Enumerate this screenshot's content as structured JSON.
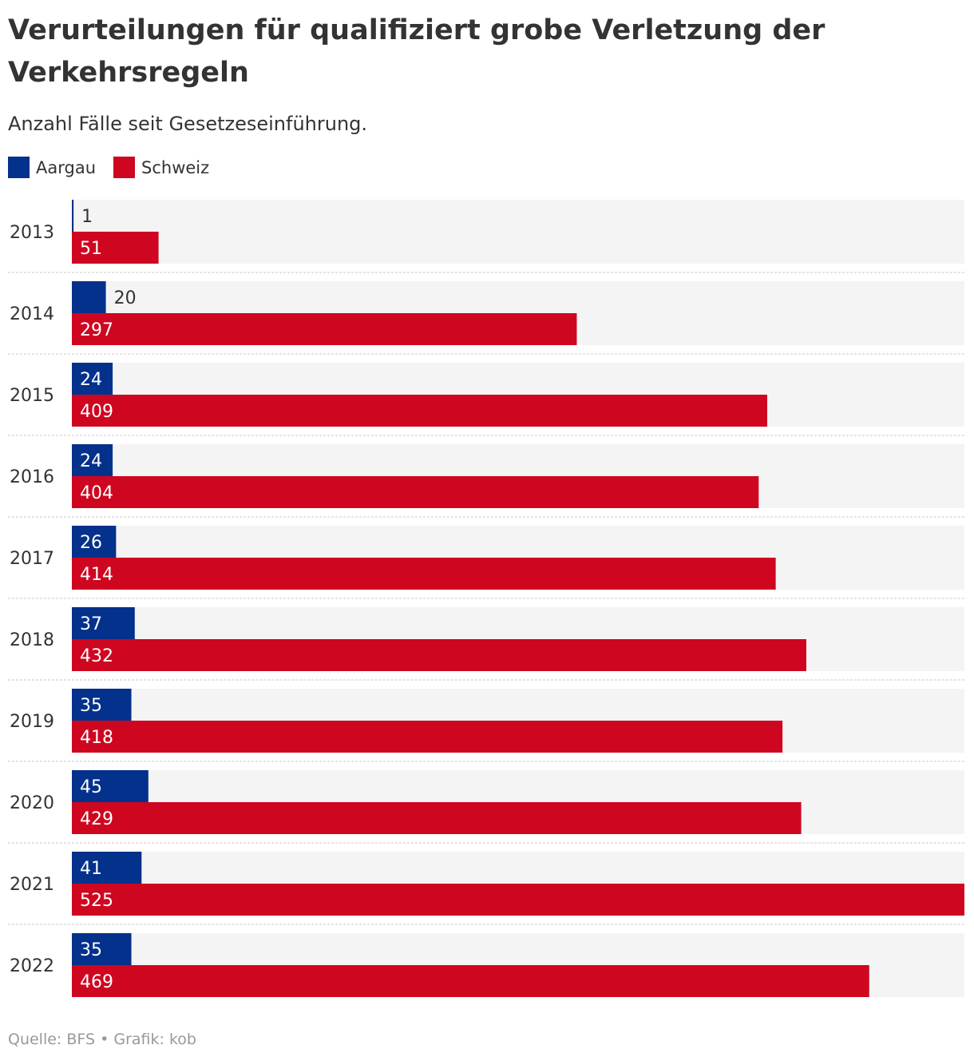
{
  "colors": {
    "aargau": "#03318b",
    "schweiz": "#cf0620",
    "track": "#f4f4f4",
    "grid": "#c8c8c8",
    "label_dark": "#333333",
    "label_light": "#ffffff"
  },
  "chart_data": {
    "type": "bar",
    "orientation": "horizontal",
    "title": "Verurteilungen für qualifiziert grobe Verletzung der Verkehrsregeln",
    "subtitle": "Anzahl Fälle seit Gesetzeseinführung.",
    "xlabel": "",
    "ylabel": "",
    "xlim": [
      0,
      525
    ],
    "grid": false,
    "legend_position": "top-left",
    "categories": [
      "2013",
      "2014",
      "2015",
      "2016",
      "2017",
      "2018",
      "2019",
      "2020",
      "2021",
      "2022"
    ],
    "series": [
      {
        "name": "Aargau",
        "values": [
          1,
          20,
          24,
          24,
          26,
          37,
          35,
          45,
          41,
          35
        ]
      },
      {
        "name": "Schweiz",
        "values": [
          51,
          297,
          409,
          404,
          414,
          432,
          418,
          429,
          525,
          469
        ]
      }
    ]
  },
  "footer": {
    "source": "Quelle: BFS • Grafik: kob"
  }
}
